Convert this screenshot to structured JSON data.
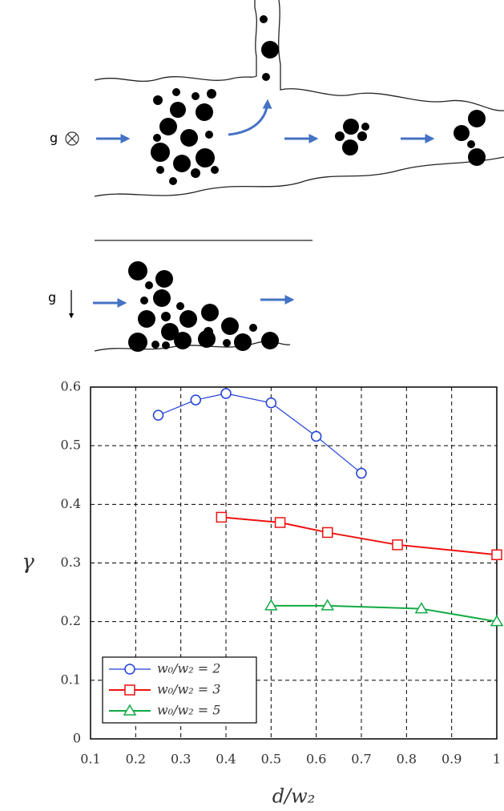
{
  "diagram": {
    "top_gravity_label": "g",
    "bottom_gravity_label": "g"
  },
  "chart_data": {
    "type": "line",
    "x_label": "d/w₂",
    "y_label": "γ",
    "xlim": [
      0.1,
      1
    ],
    "ylim": [
      0,
      0.6
    ],
    "xticks": [
      0.1,
      0.2,
      0.3,
      0.4,
      0.5,
      0.6,
      0.7,
      0.8,
      0.9,
      1
    ],
    "yticks": [
      0,
      0.1,
      0.2,
      0.3,
      0.4,
      0.5,
      0.6
    ],
    "grid": true,
    "legend": "lower left",
    "series": [
      {
        "name": "w₀/w₂ = 2",
        "color": "#1f3fd6",
        "marker": "circle",
        "x": [
          0.25,
          0.333,
          0.4,
          0.5,
          0.6,
          0.7
        ],
        "values": [
          0.552,
          0.578,
          0.589,
          0.573,
          0.516,
          0.453
        ]
      },
      {
        "name": "w₀/w₂ = 3",
        "color": "#ee1111",
        "marker": "square",
        "x": [
          0.39,
          0.52,
          0.625,
          0.78,
          1
        ],
        "values": [
          0.378,
          0.369,
          0.352,
          0.331,
          0.314
        ]
      },
      {
        "name": "w₀/w₂ = 5",
        "color": "#11aa44",
        "marker": "triangle",
        "x": [
          0.5,
          0.625,
          0.833,
          1
        ],
        "values": [
          0.227,
          0.227,
          0.222,
          0.2
        ]
      }
    ]
  }
}
